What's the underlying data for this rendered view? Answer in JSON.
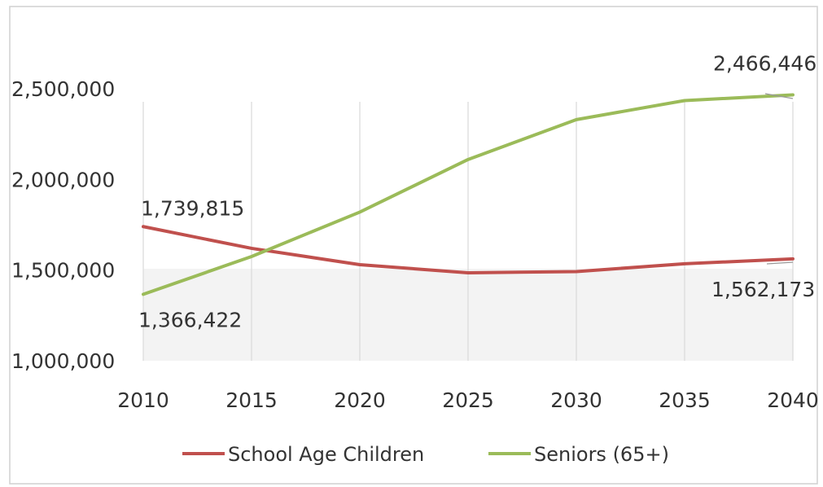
{
  "chart_data": {
    "type": "line",
    "x": [
      2010,
      2015,
      2020,
      2025,
      2030,
      2035,
      2040
    ],
    "x_tick_labels": [
      "2010",
      "2015",
      "2020",
      "2025",
      "2030",
      "2035",
      "2040"
    ],
    "ylim": [
      1000000,
      2500000
    ],
    "y_tick_labels": [
      "1,000,000",
      "1,500,000",
      "2,000,000",
      "2,500,000"
    ],
    "grid": "vertical",
    "legend": "bottom",
    "series": [
      {
        "name": "School Age Children",
        "color": "#c0504d",
        "values": [
          1739815,
          1620000,
          1530000,
          1485000,
          1492000,
          1535000,
          1562173
        ]
      },
      {
        "name": "Seniors (65+)",
        "color": "#9bbb59",
        "values": [
          1366422,
          1575000,
          1820000,
          2110000,
          2330000,
          2435000,
          2466446
        ]
      }
    ],
    "data_labels": [
      {
        "series": 0,
        "index": 0,
        "text": "1,739,815"
      },
      {
        "series": 1,
        "index": 0,
        "text": "1,366,422"
      },
      {
        "series": 1,
        "index": 6,
        "text": "2,466,446"
      },
      {
        "series": 0,
        "index": 6,
        "text": "1,562,173"
      }
    ]
  }
}
